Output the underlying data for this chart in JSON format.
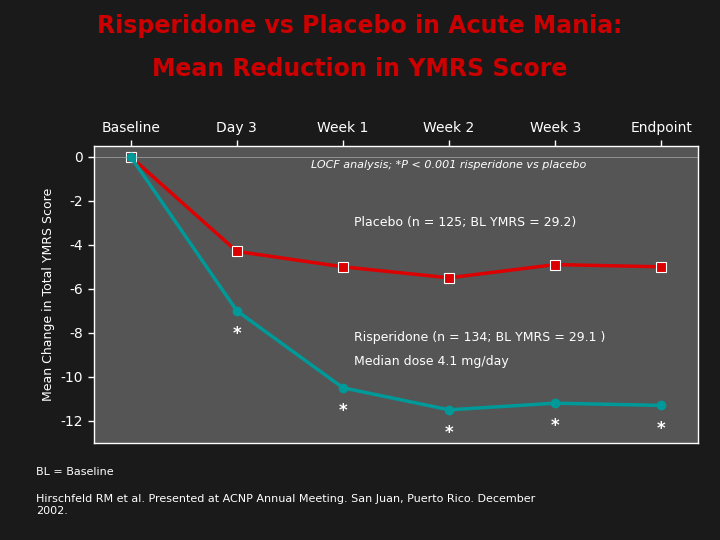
{
  "title_line1": "Risperidone vs Placebo in Acute Mania:",
  "title_line2": "Mean Reduction in YMRS Score",
  "title_color": "#CC0000",
  "background_color": "#1a1a1a",
  "plot_bg_color": "#555555",
  "xlabel_ticks": [
    "Baseline",
    "Day 3",
    "Week 1",
    "Week 2",
    "Week 3",
    "Endpoint"
  ],
  "x_positions": [
    0,
    1,
    2,
    3,
    4,
    5
  ],
  "ylabel": "Mean Change in Total YMRS Score",
  "ylim": [
    -13,
    0.5
  ],
  "yticks": [
    0,
    -2,
    -4,
    -6,
    -8,
    -10,
    -12
  ],
  "placebo_y": [
    0,
    -4.3,
    -5.0,
    -5.5,
    -4.9,
    -5.0
  ],
  "risperidone_y": [
    0,
    -7.0,
    -10.5,
    -11.5,
    -11.2,
    -11.3
  ],
  "placebo_color": "#DD0000",
  "risperidone_color": "#009999",
  "placebo_label": "Placebo (n = 125; BL YMRS = 29.2)",
  "risperidone_label1": "Risperidone (n = 134; BL YMRS = 29.1 )",
  "risperidone_label2": "Median dose 4.1 mg/day",
  "locf_text": "LOCF analysis; *P < 0.001 risperidone vs placebo",
  "star_x_risp": [
    1,
    2,
    3,
    4,
    5
  ],
  "star_y_risp": [
    -7.0,
    -10.5,
    -11.5,
    -11.2,
    -11.3
  ],
  "footnote1": "BL = Baseline",
  "footnote2": "Hirschfeld RM et al. Presented at ACNP Annual Meeting. San Juan, Puerto Rico. December\n2002.",
  "axis_color": "#ffffff",
  "tick_color": "#ffffff",
  "text_color": "#ffffff",
  "marker_size_placebo": 7,
  "marker_size_risp": 6,
  "linewidth": 2.5
}
